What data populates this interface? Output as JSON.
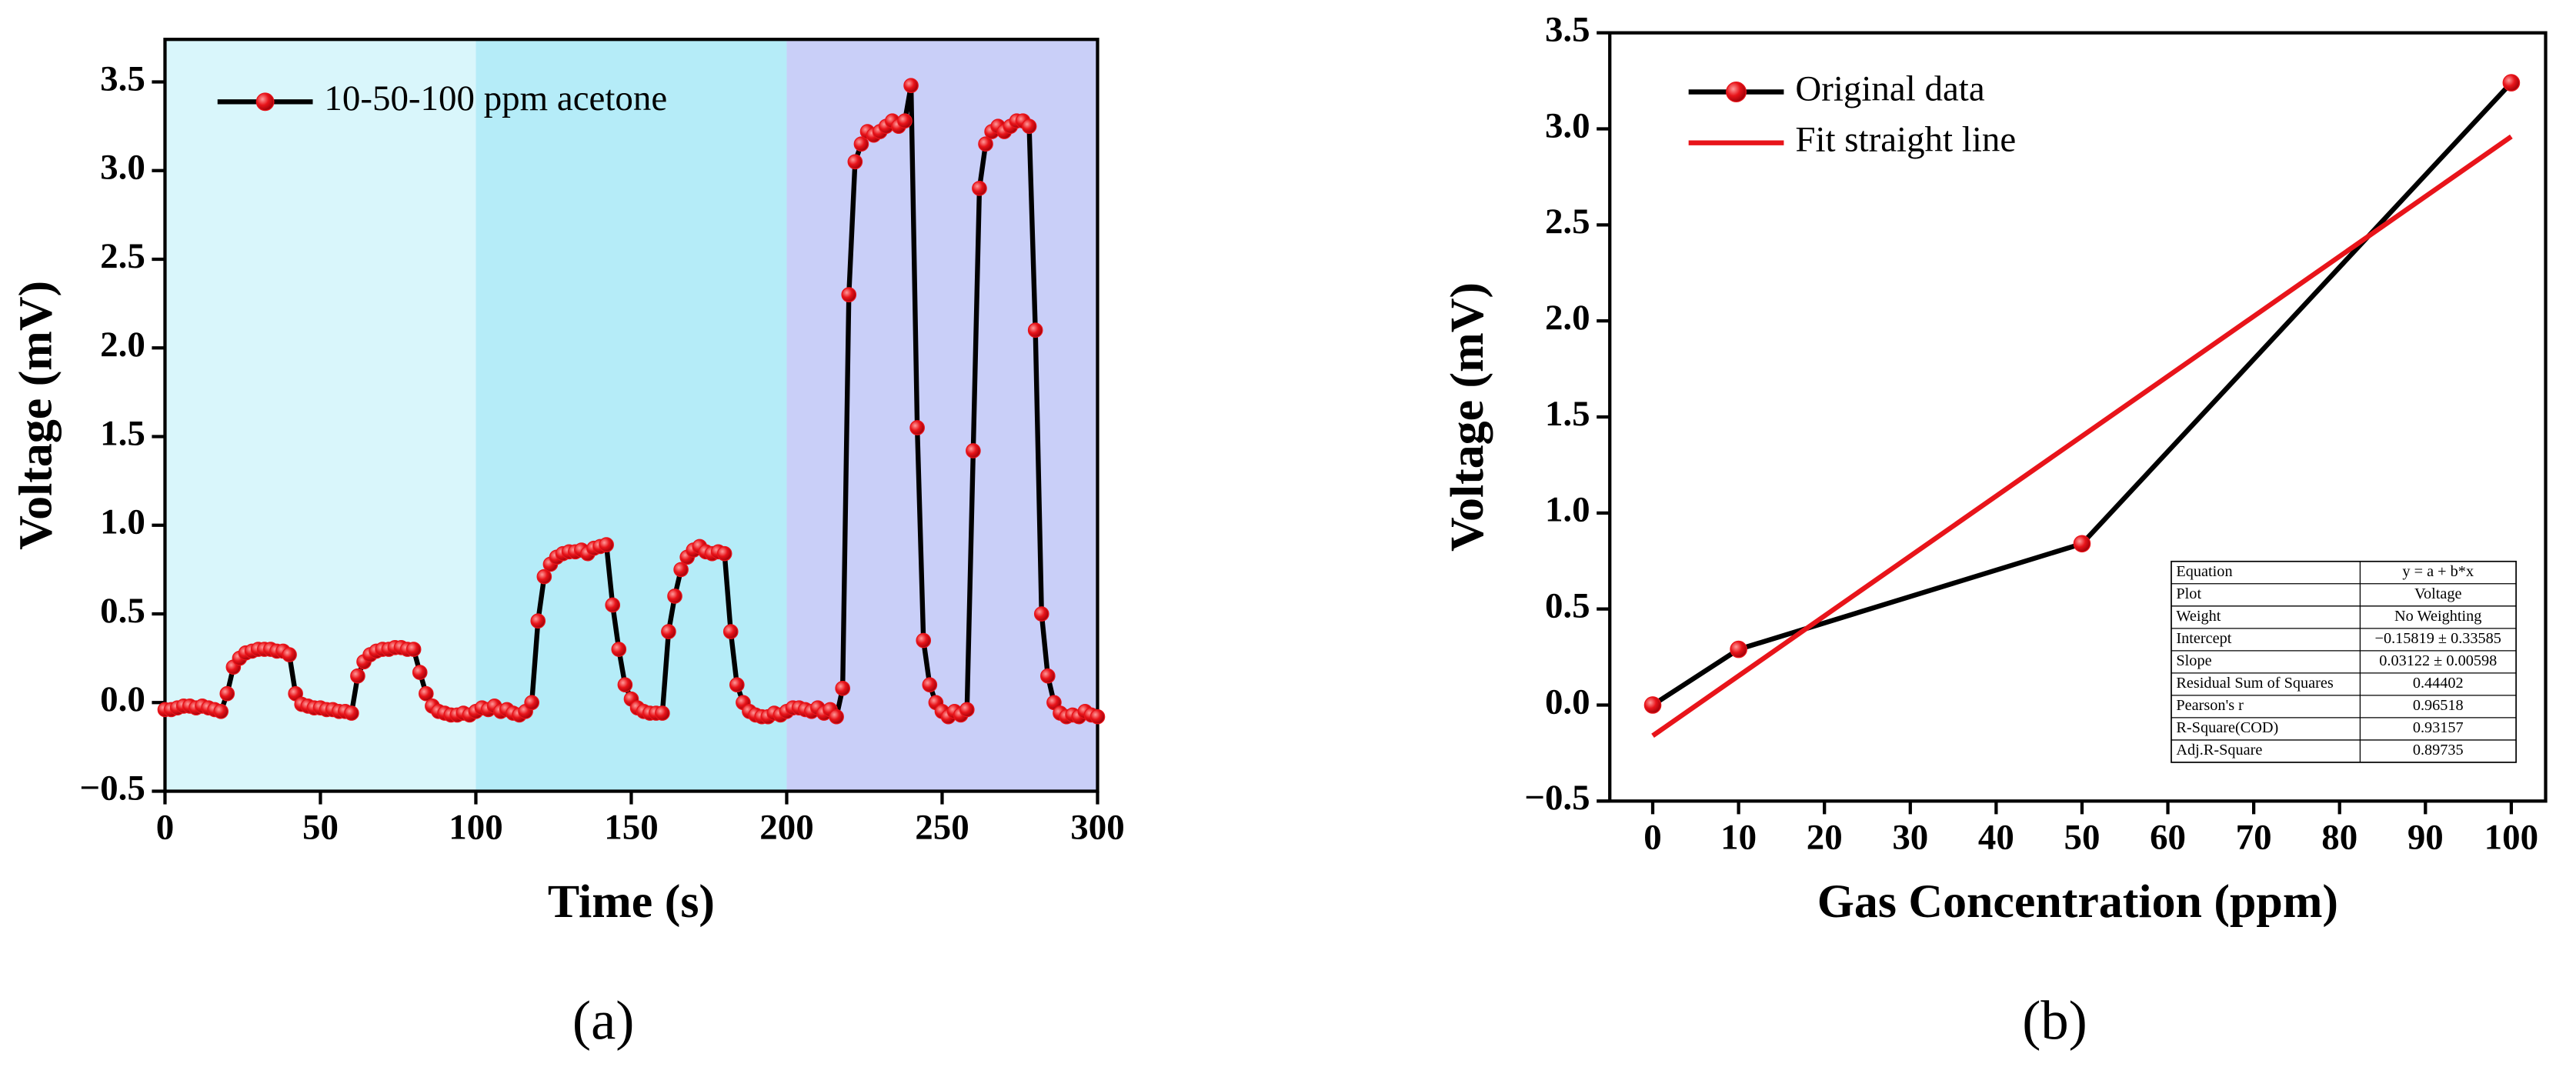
{
  "chart_data": [
    {
      "type": "line",
      "panel_label": "(a)",
      "xlabel": "Time (s)",
      "ylabel": "Voltage (mV)",
      "xlim": [
        0,
        300
      ],
      "ylim": [
        -0.5,
        3.74
      ],
      "xticks": [
        0,
        50,
        100,
        150,
        200,
        250,
        300
      ],
      "yticks": [
        {
          "value": -0.5,
          "label": "−0.5"
        },
        {
          "value": 0,
          "label": "0.0"
        },
        0.5,
        {
          "value": 1,
          "label": "1.0"
        },
        1.5,
        {
          "value": 2,
          "label": "2.0"
        },
        2.5,
        {
          "value": 3,
          "label": "3.0"
        },
        3.5
      ],
      "regions": [
        {
          "x": [
            0,
            100
          ],
          "color": "#d9f6fb"
        },
        {
          "x": [
            100,
            200
          ],
          "color": "#b5ecf8"
        },
        {
          "x": [
            200,
            300
          ],
          "color": "#c9cff8"
        }
      ],
      "legend": "upper left",
      "series": [
        {
          "name": "10-50-100 ppm acetone",
          "color": "#000000",
          "marker_color": "#e8141a",
          "x": [
            0,
            2,
            4,
            6,
            8,
            10,
            12,
            14,
            16,
            18,
            20,
            22,
            24,
            26,
            28,
            30,
            32,
            34,
            36,
            38,
            40,
            42,
            44,
            46,
            48,
            50,
            52,
            54,
            56,
            58,
            60,
            62,
            64,
            66,
            68,
            70,
            72,
            74,
            76,
            78,
            80,
            82,
            84,
            86,
            88,
            90,
            92,
            94,
            96,
            98,
            100,
            102,
            104,
            106,
            108,
            110,
            112,
            114,
            116,
            118,
            120,
            122,
            124,
            126,
            128,
            130,
            132,
            134,
            136,
            138,
            140,
            142,
            144,
            146,
            148,
            150,
            152,
            154,
            156,
            158,
            160,
            162,
            164,
            166,
            168,
            170,
            172,
            174,
            176,
            178,
            180,
            182,
            184,
            186,
            188,
            190,
            192,
            194,
            196,
            198,
            200,
            202,
            204,
            206,
            208,
            210,
            212,
            214,
            216,
            218,
            220,
            222,
            224,
            226,
            228,
            230,
            232,
            234,
            236,
            238,
            240,
            242,
            244,
            246,
            248,
            250,
            252,
            254,
            256,
            258,
            260,
            262,
            264,
            266,
            268,
            270,
            272,
            274,
            276,
            278,
            280,
            282,
            284,
            286,
            288,
            290,
            292,
            294,
            296,
            298,
            300
          ],
          "values": [
            -0.04,
            -0.04,
            -0.03,
            -0.02,
            -0.02,
            -0.03,
            -0.02,
            -0.03,
            -0.04,
            -0.05,
            0.05,
            0.2,
            0.25,
            0.28,
            0.29,
            0.3,
            0.3,
            0.3,
            0.29,
            0.29,
            0.27,
            0.05,
            -0.01,
            -0.02,
            -0.03,
            -0.03,
            -0.04,
            -0.04,
            -0.05,
            -0.05,
            -0.06,
            0.15,
            0.23,
            0.27,
            0.29,
            0.3,
            0.3,
            0.31,
            0.31,
            0.3,
            0.3,
            0.17,
            0.05,
            -0.02,
            -0.05,
            -0.06,
            -0.07,
            -0.07,
            -0.06,
            -0.07,
            -0.05,
            -0.03,
            -0.04,
            -0.02,
            -0.05,
            -0.04,
            -0.06,
            -0.07,
            -0.05,
            0,
            0.46,
            0.71,
            0.78,
            0.82,
            0.84,
            0.85,
            0.85,
            0.86,
            0.84,
            0.87,
            0.88,
            0.89,
            0.55,
            0.3,
            0.1,
            0.02,
            -0.03,
            -0.05,
            -0.06,
            -0.06,
            -0.06,
            0.4,
            0.6,
            0.75,
            0.82,
            0.86,
            0.88,
            0.85,
            0.84,
            0.85,
            0.84,
            0.4,
            0.1,
            0,
            -0.05,
            -0.07,
            -0.08,
            -0.08,
            -0.06,
            -0.07,
            -0.05,
            -0.03,
            -0.03,
            -0.04,
            -0.05,
            -0.03,
            -0.06,
            -0.04,
            -0.08,
            0.08,
            2.3,
            3.05,
            3.15,
            3.22,
            3.2,
            3.22,
            3.25,
            3.28,
            3.25,
            3.28,
            3.48,
            1.55,
            0.35,
            0.1,
            0,
            -0.05,
            -0.08,
            -0.05,
            -0.07,
            -0.04,
            1.42,
            2.9,
            3.15,
            3.22,
            3.25,
            3.22,
            3.25,
            3.28,
            3.28,
            3.25,
            2.1,
            0.5,
            0.15,
            0,
            -0.06,
            -0.08,
            -0.07,
            -0.08,
            -0.05,
            -0.07,
            -0.08
          ]
        }
      ]
    },
    {
      "type": "line",
      "panel_label": "(b)",
      "xlabel": "Gas Concentration (ppm)",
      "ylabel": "Voltage (mV)",
      "xlim": [
        -5,
        104
      ],
      "ylim": [
        -0.5,
        3.5
      ],
      "xticks": [
        0,
        10,
        20,
        30,
        40,
        50,
        60,
        70,
        80,
        90,
        100
      ],
      "yticks": [
        {
          "value": -0.5,
          "label": "−0.5"
        },
        {
          "value": 0,
          "label": "0.0"
        },
        0.5,
        {
          "value": 1,
          "label": "1.0"
        },
        1.5,
        {
          "value": 2,
          "label": "2.0"
        },
        2.5,
        {
          "value": 3,
          "label": "3.0"
        },
        3.5
      ],
      "legend": "upper left",
      "series": [
        {
          "name": "Original data",
          "color": "#000000",
          "marker_color": "#e8141a",
          "x": [
            0,
            10,
            50,
            100
          ],
          "values": [
            0,
            0.29,
            0.84,
            3.24
          ]
        },
        {
          "name": "Fit straight line",
          "color": "#e8141a",
          "x": [
            0,
            100
          ],
          "values": [
            -0.16,
            2.96
          ]
        }
      ],
      "table": [
        [
          "Equation",
          "y = a + b*x"
        ],
        [
          "Plot",
          "Voltage"
        ],
        [
          "Weight",
          "No Weighting"
        ],
        [
          "Intercept",
          "−0.15819 ± 0.33585"
        ],
        [
          "Slope",
          "0.03122 ± 0.00598"
        ],
        [
          "Residual Sum of Squares",
          "0.44402"
        ],
        [
          "Pearson's r",
          "0.96518"
        ],
        [
          "R-Square(COD)",
          "0.93157"
        ],
        [
          "Adj.R-Square",
          "0.89735"
        ]
      ]
    }
  ]
}
